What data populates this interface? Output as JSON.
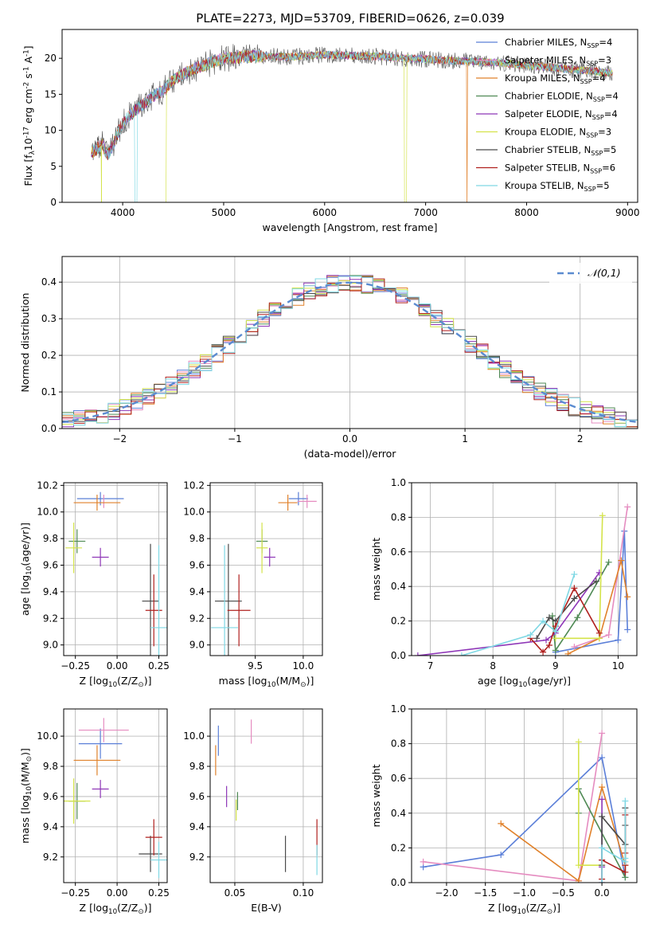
{
  "figure": {
    "title": "PLATE=2273, MJD=53709, FIBERID=0626, z=0.039"
  },
  "series_styles": [
    {
      "name": "Chabrier MILES, N$_{SSP}$=4",
      "color": "#5b7fd8"
    },
    {
      "name": "Salpeter MILES, N$_{SSP}$=3",
      "color": "#e58cc0"
    },
    {
      "name": "Kroupa MILES, N$_{SSP}$=4",
      "color": "#e0812a"
    },
    {
      "name": "Chabrier ELODIE, N$_{SSP}$=4",
      "color": "#4f8a54"
    },
    {
      "name": "Salpeter ELODIE, N$_{SSP}$=4",
      "color": "#8e36b7"
    },
    {
      "name": "Kroupa ELODIE, N$_{SSP}$=3",
      "color": "#d4e34a"
    },
    {
      "name": "Chabrier STELIB, N$_{SSP}$=5",
      "color": "#4a4a4a"
    },
    {
      "name": "Salpeter STELIB, N$_{SSP}$=6",
      "color": "#b0201e"
    },
    {
      "name": "Kroupa STELIB, N$_{SSP}$=5",
      "color": "#7fd8e4"
    }
  ],
  "chart_data": [
    {
      "id": "spectrum",
      "type": "line",
      "xlabel": "wavelength [Angstrom, rest frame]",
      "ylabel": "Flux [f$_\\lambda$10$^{-17}$ erg cm$^{-2}$ s$^{-1}$ A$^{-1}$]",
      "xlim": [
        3400,
        9100
      ],
      "ylim": [
        0,
        24
      ],
      "xticks": [
        4000,
        5000,
        6000,
        7000,
        8000,
        9000
      ],
      "yticks": [
        0,
        5,
        10,
        15,
        20
      ],
      "legend_position": "top-right",
      "continuum": {
        "x": [
          3700,
          3750,
          3800,
          3850,
          3900,
          3950,
          4000,
          4100,
          4200,
          4300,
          4400,
          4500,
          4600,
          4700,
          4800,
          4900,
          5000,
          5200,
          5400,
          5600,
          5800,
          6000,
          6200,
          6400,
          6600,
          6800,
          7000,
          7200,
          7400,
          7600,
          7800,
          8000,
          8200,
          8400,
          8600,
          8800
        ],
        "y": [
          7,
          7.5,
          8,
          6.5,
          7.8,
          9.5,
          11,
          12.5,
          13.5,
          14.8,
          15.5,
          17,
          17.8,
          18.5,
          19,
          19.5,
          20,
          20.2,
          20.3,
          20.2,
          20.3,
          20.5,
          20.4,
          20.3,
          20.2,
          20.0,
          19.9,
          19.7,
          19.6,
          19.5,
          19.3,
          19.0,
          18.8,
          18.5,
          18.3,
          18.0
        ]
      },
      "dips": [
        {
          "series": "Kroupa ELODIE, N$_{SSP}$=3",
          "x_start": 3790,
          "x_end": 4430
        },
        {
          "series": "Kroupa STELIB, N$_{SSP}$=5",
          "x_start": 4120,
          "x_end": 4140
        },
        {
          "series": "Kroupa ELODIE, N$_{SSP}$=3",
          "x_start": 6790,
          "x_end": 6810
        },
        {
          "series": "Kroupa MILES, N$_{SSP}$=4",
          "x_start": 7405,
          "x_end": 7415
        }
      ]
    },
    {
      "id": "residuals",
      "type": "histogram",
      "xlabel": "(data-model)/error",
      "ylabel": "Normed distribution",
      "xlim": [
        -2.5,
        2.5
      ],
      "ylim": [
        0,
        0.47
      ],
      "xticks": [
        -2,
        -1,
        0,
        1,
        2
      ],
      "yticks": [
        0.0,
        0.1,
        0.2,
        0.3,
        0.4
      ],
      "reference_curve": {
        "label": "$\\mathcal{N}(0,1)$",
        "mean": 0,
        "sigma": 1,
        "style": "dashed",
        "color": "#5b8bd0"
      },
      "bin_width": 0.1,
      "legend_position": "top-right"
    },
    {
      "id": "age-vs-Z",
      "type": "scatter-errorbar",
      "xlabel": "Z [log$_{10}$(Z/Z$_\\odot$)]",
      "ylabel": "age  [log$_{10}$(age/yr)]",
      "xlim": [
        -0.32,
        0.3
      ],
      "ylim": [
        8.92,
        10.22
      ],
      "xticks": [
        -0.25,
        0.0,
        0.25
      ],
      "yticks": [
        9.0,
        9.2,
        9.4,
        9.6,
        9.8,
        10.0,
        10.2
      ],
      "points": [
        {
          "series": "Chabrier MILES, N$_{SSP}$=4",
          "x": -0.1,
          "xerr": 0.14,
          "y": 10.1,
          "yerr": 0.05
        },
        {
          "series": "Salpeter MILES, N$_{SSP}$=3",
          "x": -0.08,
          "xerr": 0.0,
          "y": 10.08,
          "yerr": 0.05
        },
        {
          "series": "Kroupa MILES, N$_{SSP}$=4",
          "x": -0.12,
          "xerr": 0.14,
          "y": 10.07,
          "yerr": 0.06
        },
        {
          "series": "Chabrier ELODIE, N$_{SSP}$=4",
          "x": -0.24,
          "xerr": 0.05,
          "y": 9.78,
          "yerr": 0.09
        },
        {
          "series": "Salpeter ELODIE, N$_{SSP}$=4",
          "x": -0.1,
          "xerr": 0.05,
          "y": 9.66,
          "yerr": 0.07
        },
        {
          "series": "Kroupa ELODIE, N$_{SSP}$=3",
          "x": -0.26,
          "xerr": 0.05,
          "y": 9.73,
          "yerr": 0.19
        },
        {
          "series": "Chabrier STELIB, N$_{SSP}$=5",
          "x": 0.2,
          "xerr": 0.05,
          "y": 9.33,
          "yerr": 0.43
        },
        {
          "series": "Salpeter STELIB, N$_{SSP}$=6",
          "x": 0.22,
          "xerr": 0.05,
          "y": 9.26,
          "yerr": 0.27
        },
        {
          "series": "Kroupa STELIB, N$_{SSP}$=5",
          "x": 0.25,
          "xerr": 0.05,
          "y": 9.13,
          "yerr": 0.62
        }
      ]
    },
    {
      "id": "age-vs-mass",
      "type": "scatter-errorbar",
      "xlabel": "mass [log$_{10}$(M/M$_\\odot$)]",
      "ylabel": "",
      "xlim": [
        9.03,
        10.2
      ],
      "ylim": [
        8.92,
        10.22
      ],
      "xticks": [
        9.5,
        10.0
      ],
      "yticks": [
        9.0,
        9.2,
        9.4,
        9.6,
        9.8,
        10.0,
        10.2
      ],
      "points": [
        {
          "series": "Chabrier MILES, N$_{SSP}$=4",
          "x": 9.95,
          "xerr": 0.1,
          "y": 10.1,
          "yerr": 0.05
        },
        {
          "series": "Salpeter MILES, N$_{SSP}$=3",
          "x": 10.04,
          "xerr": 0.1,
          "y": 10.08,
          "yerr": 0.05
        },
        {
          "series": "Kroupa MILES, N$_{SSP}$=4",
          "x": 9.84,
          "xerr": 0.1,
          "y": 10.07,
          "yerr": 0.06
        },
        {
          "series": "Chabrier ELODIE, N$_{SSP}$=4",
          "x": 9.57,
          "xerr": 0.06,
          "y": 9.78,
          "yerr": 0.09
        },
        {
          "series": "Salpeter ELODIE, N$_{SSP}$=4",
          "x": 9.65,
          "xerr": 0.06,
          "y": 9.66,
          "yerr": 0.07
        },
        {
          "series": "Kroupa ELODIE, N$_{SSP}$=3",
          "x": 9.57,
          "xerr": 0.06,
          "y": 9.73,
          "yerr": 0.19
        },
        {
          "series": "Chabrier STELIB, N$_{SSP}$=5",
          "x": 9.22,
          "xerr": 0.14,
          "y": 9.33,
          "yerr": 0.43
        },
        {
          "series": "Salpeter STELIB, N$_{SSP}$=6",
          "x": 9.33,
          "xerr": 0.12,
          "y": 9.26,
          "yerr": 0.27
        },
        {
          "series": "Kroupa STELIB, N$_{SSP}$=5",
          "x": 9.18,
          "xerr": 0.14,
          "y": 9.13,
          "yerr": 0.62
        }
      ]
    },
    {
      "id": "weight-vs-age",
      "type": "line",
      "xlabel": "age  [log$_{10}$(age/yr)]",
      "ylabel": "mass weight",
      "xlim": [
        6.7,
        10.3
      ],
      "ylim": [
        0,
        1
      ],
      "xticks": [
        7,
        8,
        9,
        10
      ],
      "yticks": [
        0.0,
        0.2,
        0.4,
        0.6,
        0.8,
        1.0
      ],
      "series": [
        {
          "name": "Chabrier MILES, N$_{SSP}$=4",
          "x": [
            9.0,
            10.0,
            10.1,
            10.15
          ],
          "y": [
            0.02,
            0.09,
            0.72,
            0.15
          ]
        },
        {
          "name": "Salpeter MILES, N$_{SSP}$=3",
          "x": [
            9.3,
            9.85,
            10.15
          ],
          "y": [
            0.05,
            0.12,
            0.86
          ]
        },
        {
          "name": "Kroupa MILES, N$_{SSP}$=4",
          "x": [
            9.2,
            9.7,
            10.05,
            10.15
          ],
          "y": [
            0.01,
            0.1,
            0.55,
            0.34
          ]
        },
        {
          "name": "Chabrier ELODIE, N$_{SSP}$=4",
          "x": [
            8.95,
            9.0,
            9.35,
            9.85
          ],
          "y": [
            0.23,
            0.03,
            0.22,
            0.54
          ]
        },
        {
          "name": "Salpeter ELODIE, N$_{SSP}$=4",
          "x": [
            6.8,
            8.85,
            9.0,
            9.7
          ],
          "y": [
            0.0,
            0.09,
            0.13,
            0.48
          ]
        },
        {
          "name": "Kroupa ELODIE, N$_{SSP}$=3",
          "x": [
            9.0,
            9.7,
            9.75
          ],
          "y": [
            0.1,
            0.1,
            0.81
          ]
        },
        {
          "name": "Chabrier STELIB, N$_{SSP}$=5",
          "x": [
            8.7,
            8.9,
            9.0,
            9.3,
            9.65
          ],
          "y": [
            0.1,
            0.22,
            0.2,
            0.33,
            0.43
          ]
        },
        {
          "name": "Salpeter STELIB, N$_{SSP}$=6",
          "x": [
            8.6,
            8.8,
            8.9,
            9.0,
            9.3,
            9.7
          ],
          "y": [
            0.1,
            0.02,
            0.06,
            0.17,
            0.39,
            0.13
          ]
        },
        {
          "name": "Kroupa STELIB, N$_{SSP}$=5",
          "x": [
            7.5,
            8.6,
            8.8,
            9.0,
            9.3
          ],
          "y": [
            0.0,
            0.12,
            0.2,
            0.14,
            0.47
          ]
        }
      ]
    },
    {
      "id": "mass-vs-Z",
      "type": "scatter-errorbar",
      "xlabel": "Z [log$_{10}$(Z/Z$_\\odot$)]",
      "ylabel": "mass [log$_{10}$(M/M$_\\odot$)]",
      "xlim": [
        -0.32,
        0.3
      ],
      "ylim": [
        9.03,
        10.18
      ],
      "xticks": [
        -0.25,
        0.0,
        0.25
      ],
      "yticks": [
        9.2,
        9.4,
        9.6,
        9.8,
        10.0
      ],
      "points": [
        {
          "series": "Chabrier MILES, N$_{SSP}$=4",
          "x": -0.1,
          "xerr": 0.13,
          "y": 9.95,
          "yerr": 0.1
        },
        {
          "series": "Salpeter MILES, N$_{SSP}$=3",
          "x": -0.08,
          "xerr": 0.15,
          "y": 10.04,
          "yerr": 0.08
        },
        {
          "series": "Kroupa MILES, N$_{SSP}$=4",
          "x": -0.12,
          "xerr": 0.14,
          "y": 9.84,
          "yerr": 0.1
        },
        {
          "series": "Chabrier ELODIE, N$_{SSP}$=4",
          "x": -0.24,
          "xerr": 0.05,
          "y": 9.57,
          "yerr": 0.12
        },
        {
          "series": "Salpeter ELODIE, N$_{SSP}$=4",
          "x": -0.1,
          "xerr": 0.05,
          "y": 9.65,
          "yerr": 0.06
        },
        {
          "series": "Kroupa ELODIE, N$_{SSP}$=3",
          "x": -0.26,
          "xerr": 0.1,
          "y": 9.57,
          "yerr": 0.15
        },
        {
          "series": "Chabrier STELIB, N$_{SSP}$=5",
          "x": 0.2,
          "xerr": 0.07,
          "y": 9.22,
          "yerr": 0.12
        },
        {
          "series": "Salpeter STELIB, N$_{SSP}$=6",
          "x": 0.22,
          "xerr": 0.05,
          "y": 9.33,
          "yerr": 0.12
        },
        {
          "series": "Kroupa STELIB, N$_{SSP}$=5",
          "x": 0.25,
          "xerr": 0.05,
          "y": 9.18,
          "yerr": 0.12
        }
      ]
    },
    {
      "id": "mass-vs-EBV",
      "type": "scatter-errorbar",
      "xlabel": "E(B-V)",
      "ylabel": "",
      "xlim": [
        0.032,
        0.114
      ],
      "ylim": [
        9.03,
        10.18
      ],
      "xticks": [
        0.05,
        0.1
      ],
      "yticks": [
        9.2,
        9.4,
        9.6,
        9.8,
        10.0
      ],
      "points": [
        {
          "series": "Chabrier MILES, N$_{SSP}$=4",
          "x": 0.038,
          "xerr": 0.0,
          "y": 9.97,
          "yerr": 0.1
        },
        {
          "series": "Salpeter MILES, N$_{SSP}$=3",
          "x": 0.062,
          "xerr": 0.0,
          "y": 10.03,
          "yerr": 0.08
        },
        {
          "series": "Kroupa MILES, N$_{SSP}$=4",
          "x": 0.036,
          "xerr": 0.0,
          "y": 9.84,
          "yerr": 0.1
        },
        {
          "series": "Chabrier ELODIE, N$_{SSP}$=4",
          "x": 0.052,
          "xerr": 0.0,
          "y": 9.57,
          "yerr": 0.06
        },
        {
          "series": "Salpeter ELODIE, N$_{SSP}$=4",
          "x": 0.044,
          "xerr": 0.0,
          "y": 9.6,
          "yerr": 0.07
        },
        {
          "series": "Kroupa ELODIE, N$_{SSP}$=3",
          "x": 0.051,
          "xerr": 0.0,
          "y": 9.51,
          "yerr": 0.07
        },
        {
          "series": "Chabrier STELIB, N$_{SSP}$=5",
          "x": 0.087,
          "xerr": 0.0,
          "y": 9.22,
          "yerr": 0.12
        },
        {
          "series": "Salpeter STELIB, N$_{SSP}$=6",
          "x": 0.11,
          "xerr": 0.0,
          "y": 9.33,
          "yerr": 0.12
        },
        {
          "series": "Kroupa STELIB, N$_{SSP}$=5",
          "x": 0.11,
          "xerr": 0.0,
          "y": 9.18,
          "yerr": 0.1
        }
      ]
    },
    {
      "id": "weight-vs-Z",
      "type": "line",
      "xlabel": "Z [log$_{10}$(Z/Z$_\\odot$)]",
      "ylabel": "mass weight",
      "xlim": [
        -2.45,
        0.45
      ],
      "ylim": [
        0,
        1
      ],
      "xticks": [
        -2.0,
        -1.5,
        -1.0,
        -0.5,
        0.0
      ],
      "yticks": [
        0.0,
        0.2,
        0.4,
        0.6,
        0.8,
        1.0
      ],
      "series": [
        {
          "name": "Chabrier MILES, N$_{SSP}$=4",
          "x": [
            -2.3,
            -1.3,
            0.0,
            0.3
          ],
          "y": [
            0.09,
            0.16,
            0.72,
            0.03
          ]
        },
        {
          "name": "Salpeter MILES, N$_{SSP}$=3",
          "x": [
            -2.3,
            -0.3,
            0.0
          ],
          "y": [
            0.12,
            0.01,
            0.86
          ]
        },
        {
          "name": "Kroupa MILES, N$_{SSP}$=4",
          "x": [
            -1.3,
            -0.3,
            0.0,
            0.3
          ],
          "y": [
            0.34,
            0.01,
            0.55,
            0.1
          ]
        },
        {
          "name": "Chabrier ELODIE, N$_{SSP}$=4",
          "x": [
            -0.3,
            -0.3,
            0.3,
            0.3
          ],
          "y": [
            0.4,
            0.54,
            0.03,
            0.22
          ]
        },
        {
          "name": "Salpeter ELODIE, N$_{SSP}$=4",
          "x": [
            0.0,
            0.0,
            0.0,
            0.0
          ],
          "y": [
            0.0,
            0.48,
            0.13,
            0.09
          ]
        },
        {
          "name": "Kroupa ELODIE, N$_{SSP}$=3",
          "x": [
            -0.3,
            -0.3,
            0.0
          ],
          "y": [
            0.81,
            0.1,
            0.1
          ]
        },
        {
          "name": "Chabrier STELIB, N$_{SSP}$=5",
          "x": [
            0.0,
            0.0,
            0.3,
            0.3,
            0.3
          ],
          "y": [
            0.1,
            0.38,
            0.22,
            0.43,
            0.33
          ]
        },
        {
          "name": "Salpeter STELIB, N$_{SSP}$=6",
          "x": [
            0.0,
            0.0,
            0.3,
            0.3,
            0.3,
            0.3
          ],
          "y": [
            0.02,
            0.13,
            0.06,
            0.1,
            0.17,
            0.39
          ]
        },
        {
          "name": "Kroupa STELIB, N$_{SSP}$=5",
          "x": [
            0.0,
            0.0,
            0.3,
            0.3,
            0.3
          ],
          "y": [
            0.0,
            0.2,
            0.12,
            0.14,
            0.47
          ]
        }
      ]
    }
  ]
}
